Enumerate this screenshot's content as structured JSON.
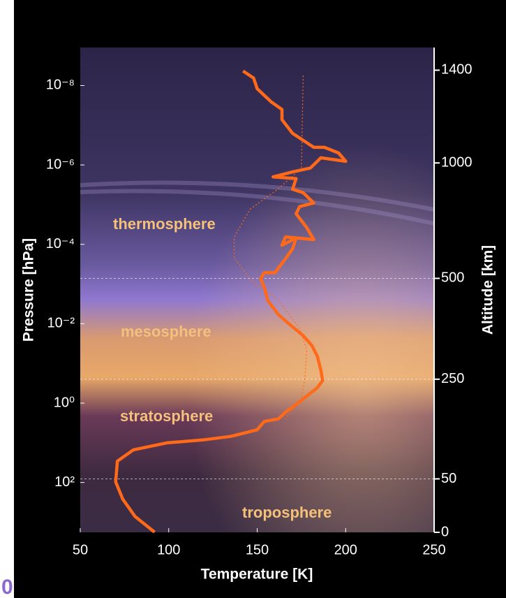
{
  "chart_data": {
    "type": "line",
    "title": null,
    "xlabel": "Temperature [K]",
    "ylabel": "Pressure  [hPa]",
    "y2label": "Altitude  [km]",
    "xlim": [
      50,
      250
    ],
    "xticks": [
      50,
      100,
      150,
      200,
      250
    ],
    "ylim": [
      1800,
      1.1e-09
    ],
    "yscale": "log",
    "yticks": [
      {
        "value": 1e-08,
        "label": "10⁻⁸"
      },
      {
        "value": 1e-06,
        "label": "10⁻⁶"
      },
      {
        "value": 0.0001,
        "label": "10⁻⁴"
      },
      {
        "value": 0.01,
        "label": "10⁻²"
      },
      {
        "value": 1,
        "label": "10⁰"
      },
      {
        "value": 100,
        "label": "10²"
      }
    ],
    "y2ticks": [
      0,
      50,
      250,
      500,
      1000,
      1400
    ],
    "y2_pressure": [
      1800,
      81,
      0.25,
      0.00072,
      8.9e-07,
      4.1e-09
    ],
    "annotations": [
      "thermosphere",
      "mesosphere",
      "stratosphere",
      "troposphere"
    ],
    "series": [
      {
        "color": "#ff6a1a",
        "style": "solid",
        "x": [
          92,
          81,
          74,
          70,
          71,
          80,
          99,
          119,
          135,
          150,
          154,
          162,
          166,
          174,
          184,
          187,
          186,
          184,
          181,
          176,
          169,
          162,
          156,
          154,
          152,
          154,
          160,
          166,
          170,
          172,
          164,
          166,
          182,
          178,
          172,
          174,
          182,
          176,
          170,
          172,
          159,
          170,
          180,
          186,
          200,
          196,
          188,
          182,
          170,
          164,
          164,
          158,
          150,
          148,
          142
        ],
        "values": [
          1780,
          720,
          260,
          96,
          29,
          15,
          10,
          8.5,
          6.9,
          4.7,
          2.9,
          2.5,
          1.7,
          0.92,
          0.41,
          0.27,
          0.15,
          0.066,
          0.036,
          0.02,
          0.011,
          0.0059,
          0.0026,
          0.0012,
          0.00072,
          0.00052,
          0.00052,
          0.00023,
          0.00013,
          6.9e-05,
          0.000105,
          6.5e-05,
          7.6e-05,
          3.8e-05,
          1.7e-05,
          1.12e-05,
          9.1e-06,
          5e-06,
          4.1e-06,
          2.2e-06,
          2e-06,
          1.5e-06,
          1.2e-06,
          6.6e-07,
          8.1e-07,
          5e-07,
          3.6e-07,
          3.6e-07,
          1.6e-07,
          7.2e-08,
          4e-08,
          2.6e-08,
          1.2e-08,
          6.5e-09,
          4.3e-09
        ]
      },
      {
        "color": "#ff6a1a",
        "style": "dotted",
        "x": [
          176,
          175,
          162,
          146,
          137,
          137,
          146,
          162,
          174,
          178,
          177,
          175,
          166
        ],
        "values": [
          5.6e-09,
          1.2e-06,
          4e-06,
          1.3e-05,
          6.6e-05,
          0.00022,
          0.00076,
          0.0026,
          0.013,
          0.045,
          0.22,
          0.76,
          2.5
        ]
      }
    ]
  },
  "logo_fragment": "0"
}
